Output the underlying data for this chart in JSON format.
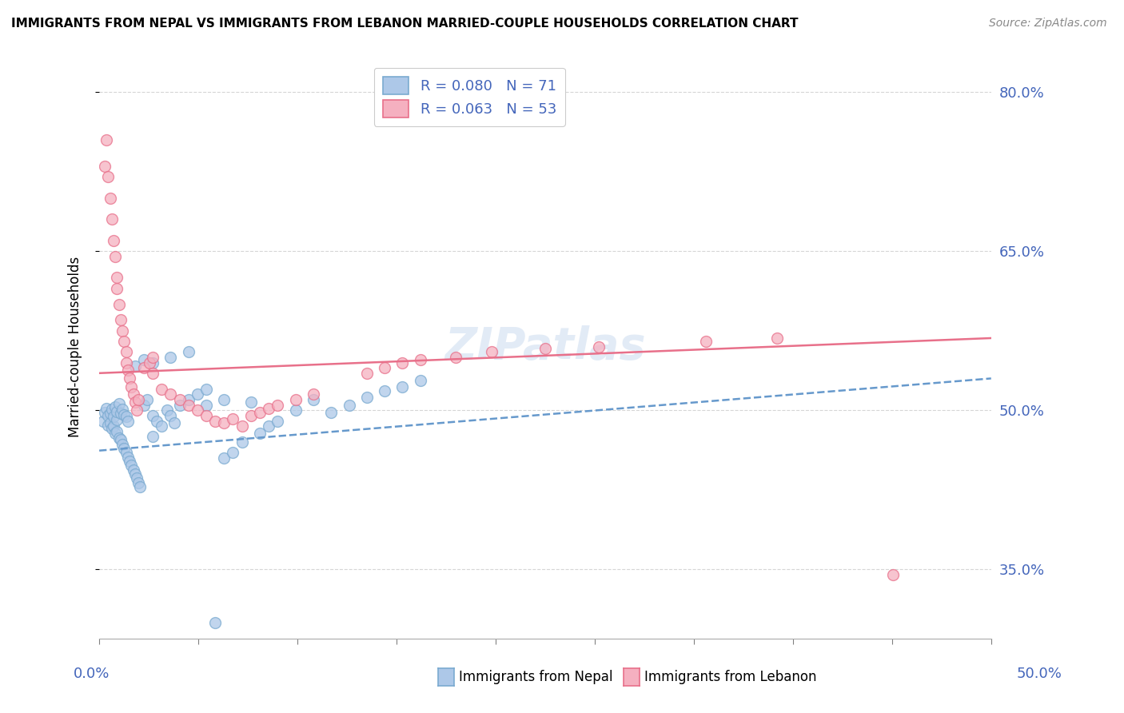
{
  "title": "IMMIGRANTS FROM NEPAL VS IMMIGRANTS FROM LEBANON MARRIED-COUPLE HOUSEHOLDS CORRELATION CHART",
  "source": "Source: ZipAtlas.com",
  "ylabel": "Married-couple Households",
  "y_ticks": [
    0.35,
    0.5,
    0.65,
    0.8
  ],
  "y_tick_labels": [
    "35.0%",
    "50.0%",
    "65.0%",
    "80.0%"
  ],
  "x_range": [
    0.0,
    0.5
  ],
  "y_range": [
    0.285,
    0.835
  ],
  "nepal_R": 0.08,
  "nepal_N": 71,
  "lebanon_R": 0.063,
  "lebanon_N": 53,
  "nepal_color": "#adc8e8",
  "lebanon_color": "#f5b0c0",
  "nepal_edge_color": "#7aaad0",
  "lebanon_edge_color": "#e8708a",
  "nepal_trend_color": "#6699cc",
  "lebanon_trend_color": "#e8708a",
  "legend_nepal_label": "R = 0.080   N = 71",
  "legend_lebanon_label": "R = 0.063   N = 53",
  "watermark": "ZIPatlas",
  "nepal_trend_y0": 0.462,
  "nepal_trend_y1": 0.53,
  "lebanon_trend_y0": 0.535,
  "lebanon_trend_y1": 0.568,
  "label_color": "#4466bb",
  "nepal_x": [
    0.002,
    0.003,
    0.004,
    0.005,
    0.005,
    0.006,
    0.006,
    0.007,
    0.007,
    0.008,
    0.008,
    0.009,
    0.009,
    0.01,
    0.01,
    0.01,
    0.011,
    0.011,
    0.012,
    0.012,
    0.013,
    0.013,
    0.014,
    0.014,
    0.015,
    0.015,
    0.016,
    0.016,
    0.017,
    0.018,
    0.019,
    0.02,
    0.021,
    0.022,
    0.023,
    0.025,
    0.027,
    0.03,
    0.03,
    0.032,
    0.035,
    0.038,
    0.04,
    0.042,
    0.045,
    0.05,
    0.055,
    0.06,
    0.065,
    0.07,
    0.075,
    0.08,
    0.09,
    0.095,
    0.1,
    0.11,
    0.12,
    0.13,
    0.14,
    0.15,
    0.16,
    0.17,
    0.18,
    0.02,
    0.025,
    0.03,
    0.04,
    0.05,
    0.06,
    0.07,
    0.085
  ],
  "nepal_y": [
    0.49,
    0.498,
    0.502,
    0.486,
    0.495,
    0.488,
    0.497,
    0.483,
    0.501,
    0.485,
    0.494,
    0.478,
    0.503,
    0.48,
    0.491,
    0.499,
    0.474,
    0.506,
    0.472,
    0.497,
    0.468,
    0.501,
    0.464,
    0.496,
    0.46,
    0.494,
    0.456,
    0.49,
    0.452,
    0.448,
    0.444,
    0.44,
    0.436,
    0.432,
    0.428,
    0.505,
    0.51,
    0.475,
    0.495,
    0.49,
    0.485,
    0.5,
    0.495,
    0.488,
    0.505,
    0.51,
    0.515,
    0.52,
    0.3,
    0.455,
    0.46,
    0.47,
    0.478,
    0.485,
    0.49,
    0.5,
    0.51,
    0.498,
    0.505,
    0.512,
    0.518,
    0.522,
    0.528,
    0.542,
    0.548,
    0.545,
    0.55,
    0.555,
    0.505,
    0.51,
    0.508
  ],
  "lebanon_x": [
    0.003,
    0.004,
    0.005,
    0.006,
    0.007,
    0.008,
    0.009,
    0.01,
    0.01,
    0.011,
    0.012,
    0.013,
    0.014,
    0.015,
    0.015,
    0.016,
    0.017,
    0.018,
    0.019,
    0.02,
    0.021,
    0.022,
    0.025,
    0.028,
    0.03,
    0.03,
    0.035,
    0.04,
    0.045,
    0.05,
    0.055,
    0.06,
    0.065,
    0.07,
    0.075,
    0.08,
    0.085,
    0.09,
    0.095,
    0.1,
    0.11,
    0.12,
    0.15,
    0.16,
    0.17,
    0.18,
    0.2,
    0.22,
    0.25,
    0.28,
    0.34,
    0.38,
    0.445
  ],
  "lebanon_y": [
    0.73,
    0.755,
    0.72,
    0.7,
    0.68,
    0.66,
    0.645,
    0.625,
    0.615,
    0.6,
    0.585,
    0.575,
    0.565,
    0.555,
    0.545,
    0.538,
    0.53,
    0.522,
    0.515,
    0.508,
    0.5,
    0.51,
    0.54,
    0.545,
    0.535,
    0.55,
    0.52,
    0.515,
    0.51,
    0.505,
    0.5,
    0.495,
    0.49,
    0.488,
    0.492,
    0.485,
    0.495,
    0.498,
    0.502,
    0.505,
    0.51,
    0.515,
    0.535,
    0.54,
    0.545,
    0.548,
    0.55,
    0.555,
    0.558,
    0.56,
    0.565,
    0.568,
    0.345
  ]
}
